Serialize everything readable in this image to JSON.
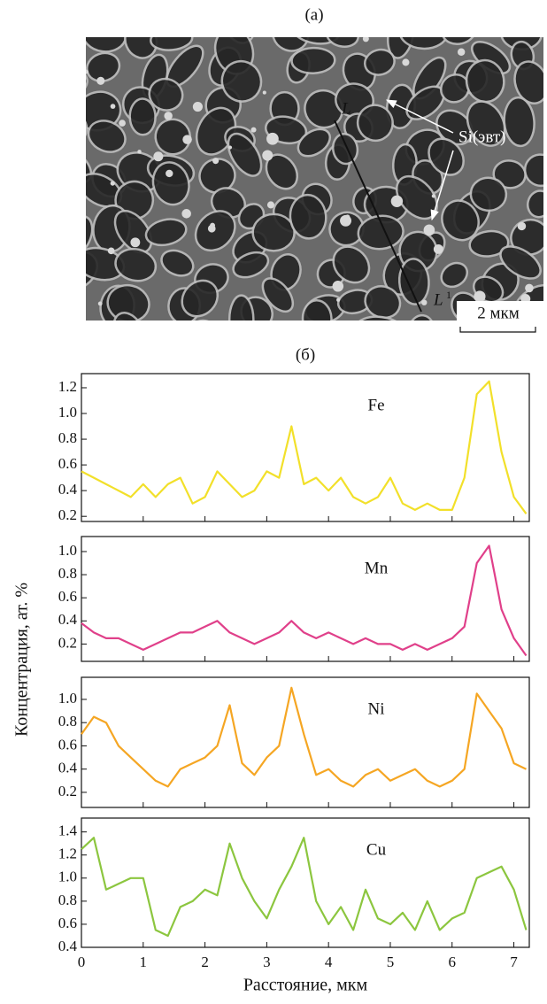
{
  "figure": {
    "panel_a_label": "(а)",
    "panel_b_label": "(б)",
    "line_start": "L",
    "line_end": "L",
    "line_end_sup": "1",
    "phase_label": "Si(эвт)",
    "scale_bar": "2 мкм",
    "y_label": "Концентрация, ат. %"
  },
  "chart_data": [
    {
      "type": "line",
      "x": [
        0,
        0.2,
        0.4,
        0.6,
        0.8,
        1,
        1.2,
        1.4,
        1.6,
        1.8,
        2,
        2.2,
        2.4,
        2.6,
        2.8,
        3,
        3.2,
        3.4,
        3.6,
        3.8,
        4,
        4.2,
        4.4,
        4.6,
        4.8,
        5,
        5.2,
        5.4,
        5.6,
        5.8,
        6,
        6.2,
        6.4,
        6.6,
        6.8,
        7,
        7.2
      ],
      "series": [
        {
          "name": "Fe",
          "color": "#f2e02a",
          "values": [
            0.55,
            0.5,
            0.45,
            0.4,
            0.35,
            0.45,
            0.35,
            0.45,
            0.5,
            0.3,
            0.35,
            0.55,
            0.45,
            0.35,
            0.4,
            0.55,
            0.5,
            0.9,
            0.45,
            0.5,
            0.4,
            0.5,
            0.35,
            0.3,
            0.35,
            0.5,
            0.3,
            0.25,
            0.3,
            0.25,
            0.25,
            0.5,
            1.15,
            1.25,
            0.7,
            0.35,
            0.22
          ]
        }
      ],
      "xlim": [
        0,
        7.25
      ],
      "xticks": [
        0,
        1,
        2,
        3,
        4,
        5,
        6,
        7
      ],
      "ylim": [
        0.16,
        1.31
      ],
      "yticks": [
        0.2,
        0.4,
        0.6,
        0.8,
        {
          "value": 1,
          "label": "1.0"
        },
        1.2
      ]
    },
    {
      "type": "line",
      "x": [
        0,
        0.2,
        0.4,
        0.6,
        0.8,
        1,
        1.2,
        1.4,
        1.6,
        1.8,
        2,
        2.2,
        2.4,
        2.6,
        2.8,
        3,
        3.2,
        3.4,
        3.6,
        3.8,
        4,
        4.2,
        4.4,
        4.6,
        4.8,
        5,
        5.2,
        5.4,
        5.6,
        5.8,
        6,
        6.2,
        6.4,
        6.6,
        6.8,
        7,
        7.2
      ],
      "series": [
        {
          "name": "Mn",
          "color": "#e0408a",
          "values": [
            0.38,
            0.3,
            0.25,
            0.25,
            0.2,
            0.15,
            0.2,
            0.25,
            0.3,
            0.3,
            0.35,
            0.4,
            0.3,
            0.25,
            0.2,
            0.25,
            0.3,
            0.4,
            0.3,
            0.25,
            0.3,
            0.25,
            0.2,
            0.25,
            0.2,
            0.2,
            0.15,
            0.2,
            0.15,
            0.2,
            0.25,
            0.35,
            0.9,
            1.05,
            0.5,
            0.25,
            0.1
          ]
        }
      ],
      "xlim": [
        0,
        7.25
      ],
      "xticks": [
        0,
        1,
        2,
        3,
        4,
        5,
        6,
        7
      ],
      "ylim": [
        0.05,
        1.13
      ],
      "yticks": [
        0.2,
        0.4,
        0.6,
        0.8,
        {
          "value": 1,
          "label": "1.0"
        }
      ]
    },
    {
      "type": "line",
      "x": [
        0,
        0.2,
        0.4,
        0.6,
        0.8,
        1,
        1.2,
        1.4,
        1.6,
        1.8,
        2,
        2.2,
        2.4,
        2.6,
        2.8,
        3,
        3.2,
        3.4,
        3.6,
        3.8,
        4,
        4.2,
        4.4,
        4.6,
        4.8,
        5,
        5.2,
        5.4,
        5.6,
        5.8,
        6,
        6.2,
        6.4,
        6.6,
        6.8,
        7,
        7.2
      ],
      "series": [
        {
          "name": "Ni",
          "color": "#f5a623",
          "values": [
            0.7,
            0.85,
            0.8,
            0.6,
            0.5,
            0.4,
            0.3,
            0.25,
            0.4,
            0.45,
            0.5,
            0.6,
            0.95,
            0.45,
            0.35,
            0.5,
            0.6,
            1.1,
            0.7,
            0.35,
            0.4,
            0.3,
            0.25,
            0.35,
            0.4,
            0.3,
            0.35,
            0.4,
            0.3,
            0.25,
            0.3,
            0.4,
            1.05,
            0.9,
            0.75,
            0.45,
            0.4
          ]
        }
      ],
      "xlim": [
        0,
        7.25
      ],
      "xticks": [
        0,
        1,
        2,
        3,
        4,
        5,
        6,
        7
      ],
      "ylim": [
        0.07,
        1.19
      ],
      "yticks": [
        0.2,
        0.4,
        0.6,
        0.8,
        {
          "value": 1,
          "label": "1.0"
        }
      ]
    },
    {
      "type": "line",
      "x": [
        0,
        0.2,
        0.4,
        0.6,
        0.8,
        1,
        1.2,
        1.4,
        1.6,
        1.8,
        2,
        2.2,
        2.4,
        2.6,
        2.8,
        3,
        3.2,
        3.4,
        3.6,
        3.8,
        4,
        4.2,
        4.4,
        4.6,
        4.8,
        5,
        5.2,
        5.4,
        5.6,
        5.8,
        6,
        6.2,
        6.4,
        6.6,
        6.8,
        7,
        7.2
      ],
      "series": [
        {
          "name": "Cu",
          "color": "#8cc63f",
          "values": [
            1.25,
            1.35,
            0.9,
            0.95,
            1.0,
            1.0,
            0.55,
            0.5,
            0.75,
            0.8,
            0.9,
            0.85,
            1.3,
            1.0,
            0.8,
            0.65,
            0.9,
            1.1,
            1.35,
            0.8,
            0.6,
            0.75,
            0.55,
            0.9,
            0.65,
            0.6,
            0.7,
            0.55,
            0.8,
            0.55,
            0.65,
            0.7,
            1.0,
            1.05,
            1.1,
            0.9,
            0.55
          ]
        }
      ],
      "xlim": [
        0,
        7.25
      ],
      "xticks": [
        0,
        1,
        2,
        3,
        4,
        5,
        6,
        7
      ],
      "ylim": [
        0.4,
        1.52
      ],
      "yticks": [
        0.4,
        0.6,
        0.8,
        {
          "value": 1,
          "label": "1.0"
        },
        1.2,
        1.4
      ],
      "xlabel": "Расстояние, мкм"
    }
  ]
}
